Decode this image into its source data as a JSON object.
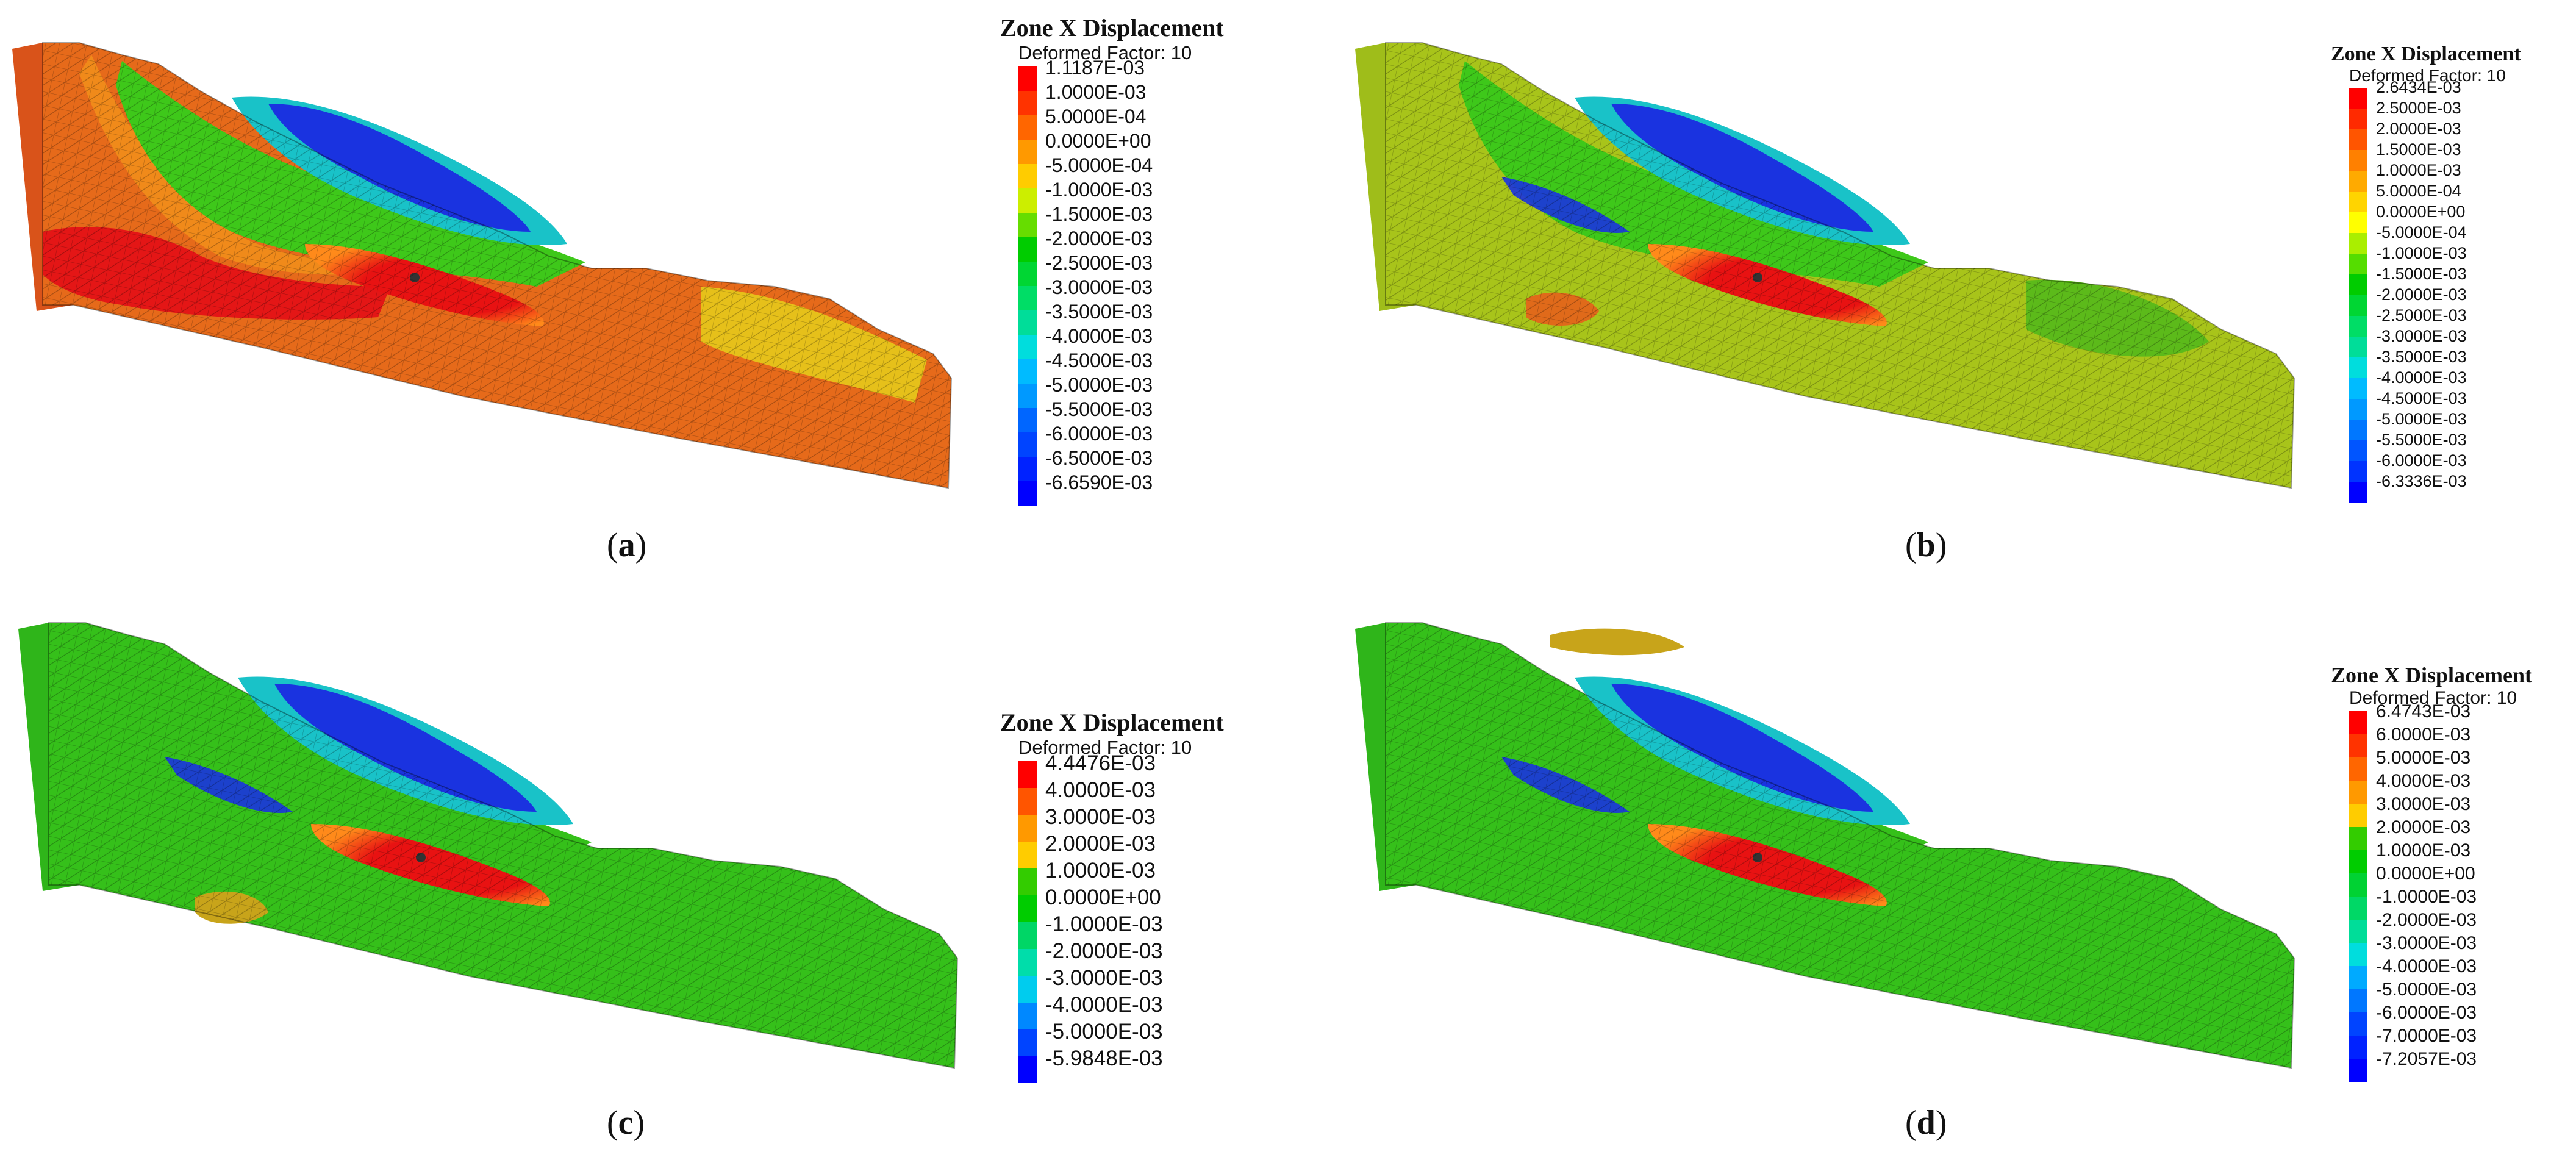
{
  "panels": [
    {
      "id": "a",
      "caption_open": "(",
      "caption_letter": "a",
      "caption_close": ")",
      "legend": {
        "title": "Zone X Displacement",
        "subtitle": "Deformed Factor: 10",
        "entries": [
          "1.1187E-03",
          "1.0000E-03",
          "5.0000E-04",
          "0.0000E+00",
          "-5.0000E-04",
          "-1.0000E-03",
          "-1.5000E-03",
          "-2.0000E-03",
          "-2.5000E-03",
          "-3.0000E-03",
          "-3.5000E-03",
          "-4.0000E-03",
          "-4.5000E-03",
          "-5.0000E-03",
          "-5.5000E-03",
          "-6.0000E-03",
          "-6.5000E-03",
          "-6.6590E-03"
        ],
        "colors": [
          "#ff0000",
          "#ff3300",
          "#ff6600",
          "#ff9900",
          "#ffcc00",
          "#ccee00",
          "#66dd00",
          "#00cc00",
          "#00d633",
          "#00dd66",
          "#00dd99",
          "#00dddd",
          "#00bbff",
          "#0099ff",
          "#0066ff",
          "#0044ff",
          "#0022ff",
          "#0000ff"
        ]
      },
      "colors": {
        "body": "#e66a1a",
        "side": "#d9531a",
        "hot": "#e41616",
        "orangeBand": "#f08a1a",
        "yellowBand": "#e6c01a",
        "green": "#3ec81a",
        "cyan": "#19c2c8",
        "blue": "#1a33e0",
        "red": "#e81212",
        "toe": "#d4d418"
      }
    },
    {
      "id": "b",
      "caption_open": "(",
      "caption_letter": "b",
      "caption_close": ")",
      "legend": {
        "title": "Zone X Displacement",
        "subtitle": "Deformed Factor: 10",
        "entries": [
          "2.6434E-03",
          "2.5000E-03",
          "2.0000E-03",
          "1.5000E-03",
          "1.0000E-03",
          "5.0000E-04",
          "0.0000E+00",
          "-5.0000E-04",
          "-1.0000E-03",
          "-1.5000E-03",
          "-2.0000E-03",
          "-2.5000E-03",
          "-3.0000E-03",
          "-3.5000E-03",
          "-4.0000E-03",
          "-4.5000E-03",
          "-5.0000E-03",
          "-5.5000E-03",
          "-6.0000E-03",
          "-6.3336E-03"
        ],
        "colors": [
          "#ff0000",
          "#ff2a00",
          "#ff5500",
          "#ff8000",
          "#ffaa00",
          "#ffd400",
          "#ffff00",
          "#aaee00",
          "#55dd00",
          "#00cc00",
          "#00d633",
          "#00dd66",
          "#00dd99",
          "#00dddd",
          "#00bbff",
          "#0099ff",
          "#0077ff",
          "#0055ff",
          "#0033ff",
          "#0000ff"
        ]
      },
      "colors": {
        "body": "#a8c41a",
        "side": "#9fbd1a",
        "hot": "#e06a1a",
        "orangeBand": "#b8c81a",
        "yellowBand": "#b0c81a",
        "green": "#3ec81a",
        "cyan": "#19c2c8",
        "blue": "#1a33e0",
        "red": "#e81212",
        "toe": "#5cba1a"
      }
    },
    {
      "id": "c",
      "caption_open": "(",
      "caption_letter": "c",
      "caption_close": ")",
      "legend": {
        "title": "Zone X Displacement",
        "subtitle": "Deformed Factor: 10",
        "entries": [
          "4.4476E-03",
          "4.0000E-03",
          "3.0000E-03",
          "2.0000E-03",
          "1.0000E-03",
          "0.0000E+00",
          "-1.0000E-03",
          "-2.0000E-03",
          "-3.0000E-03",
          "-4.0000E-03",
          "-5.0000E-03",
          "-5.9848E-03"
        ],
        "colors": [
          "#ff0000",
          "#ff5500",
          "#ff9900",
          "#ffcc00",
          "#33cc00",
          "#00cc00",
          "#00d666",
          "#00ddaa",
          "#00ccee",
          "#0088ff",
          "#0044ff",
          "#0000ff"
        ]
      },
      "colors": {
        "body": "#35c01a",
        "side": "#2fb51a",
        "hot": "#35c01a",
        "orangeBand": "#35c01a",
        "yellowBand": "#35c01a",
        "green": "#35c01a",
        "cyan": "#19c2c8",
        "blue": "#1a33e0",
        "red": "#e81212",
        "toe": "#35c01a"
      }
    },
    {
      "id": "d",
      "caption_open": "(",
      "caption_letter": "d",
      "caption_close": ")",
      "legend": {
        "title": "Zone X Displacement",
        "subtitle": "Deformed Factor: 10",
        "entries": [
          "6.4743E-03",
          "6.0000E-03",
          "5.0000E-03",
          "4.0000E-03",
          "3.0000E-03",
          "2.0000E-03",
          "1.0000E-03",
          "0.0000E+00",
          "-1.0000E-03",
          "-2.0000E-03",
          "-3.0000E-03",
          "-4.0000E-03",
          "-5.0000E-03",
          "-6.0000E-03",
          "-7.0000E-03",
          "-7.2057E-03"
        ],
        "colors": [
          "#ff0000",
          "#ff3300",
          "#ff6600",
          "#ff9900",
          "#ffcc00",
          "#33cc00",
          "#00cc00",
          "#00d233",
          "#00d866",
          "#00dd99",
          "#00dddd",
          "#00aaff",
          "#0077ff",
          "#0044ff",
          "#0022ff",
          "#0000ff"
        ]
      },
      "colors": {
        "body": "#35c01a",
        "side": "#2fb51a",
        "hot": "#35c01a",
        "orangeBand": "#35c01a",
        "yellowBand": "#35c01a",
        "green": "#35c01a",
        "cyan": "#19c2c8",
        "blue": "#1a33e0",
        "red": "#e81212",
        "toe": "#35c01a"
      }
    }
  ]
}
